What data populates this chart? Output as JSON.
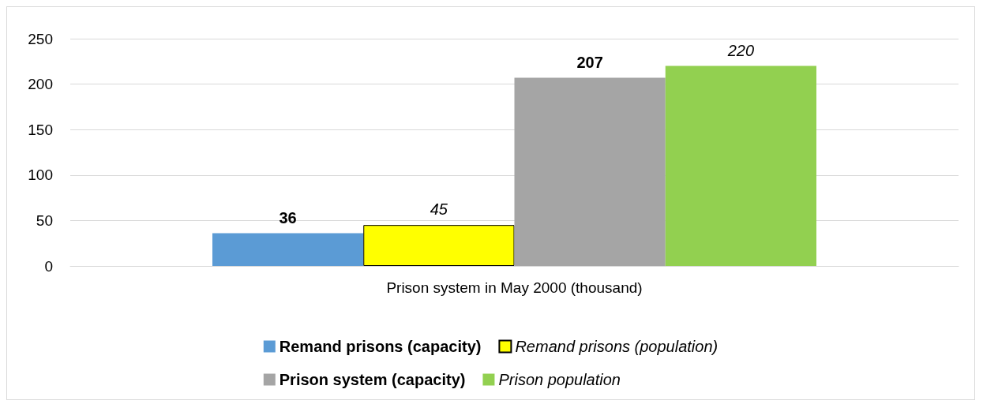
{
  "chart_data": {
    "type": "bar",
    "categories": [
      "Prison system in May 2000 (thousand)"
    ],
    "series": [
      {
        "name": "Remand prisons (capacity)",
        "color": "#5b9bd5",
        "values": [
          36
        ]
      },
      {
        "name": "Remand prisons (population)",
        "color": "#ffff00",
        "values": [
          45
        ]
      },
      {
        "name": "Prison system (capacity)",
        "color": "#a5a5a5",
        "values": [
          207
        ]
      },
      {
        "name": "Prison population",
        "color": "#92d050",
        "values": [
          220
        ]
      }
    ],
    "ylim": [
      0,
      250
    ],
    "yticks": [
      0,
      50,
      100,
      150,
      200,
      250
    ],
    "grid": "y",
    "legend": "bottom",
    "data_labels": true
  }
}
